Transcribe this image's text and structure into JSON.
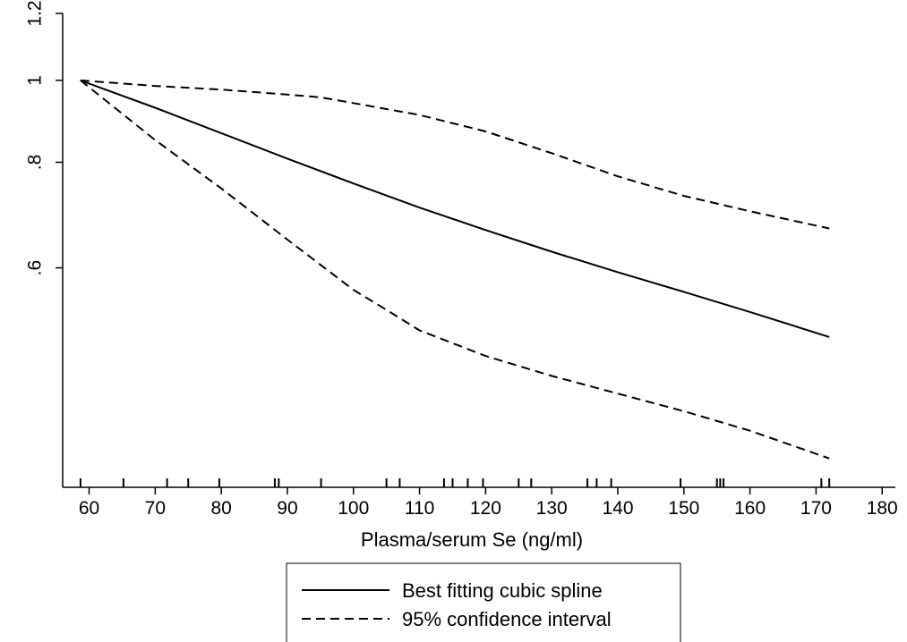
{
  "chart_data": {
    "type": "line",
    "title": "",
    "xlabel": "Plasma/serum Se (ng/ml)",
    "ylabel": "",
    "xlim": [
      56,
      182
    ],
    "ylim": [
      0.33,
      1.2
    ],
    "y_scale": "log",
    "x_ticks": [
      60,
      70,
      80,
      90,
      100,
      110,
      120,
      130,
      140,
      150,
      160,
      170,
      180
    ],
    "x_tick_labels": [
      "60",
      "70",
      "80",
      "90",
      "100",
      "110",
      "120",
      "130",
      "140",
      "150",
      "160",
      "170",
      "180"
    ],
    "y_ticks": [
      0.6,
      0.8,
      1,
      1.2
    ],
    "y_tick_labels": [
      ".6",
      ".8",
      "1",
      "1.2"
    ],
    "grid": false,
    "legend_position": "bottom-center",
    "series": [
      {
        "name": "Best fitting cubic spline",
        "style": "solid",
        "x": [
          58.7,
          70,
          80,
          90,
          100,
          110,
          120,
          130,
          140,
          150,
          160,
          172
        ],
        "y": [
          1.0,
          0.928,
          0.866,
          0.808,
          0.755,
          0.707,
          0.665,
          0.627,
          0.593,
          0.562,
          0.532,
          0.497
        ]
      },
      {
        "name": "95% confidence interval",
        "style": "dashed",
        "x": [
          58.7,
          70,
          80,
          90,
          95,
          100,
          110,
          120,
          130,
          140,
          150,
          160,
          172
        ],
        "y": [
          1.0,
          0.985,
          0.975,
          0.962,
          0.955,
          0.94,
          0.91,
          0.87,
          0.82,
          0.77,
          0.73,
          0.7,
          0.668
        ]
      },
      {
        "name": "",
        "style": "dashed",
        "x": [
          58.7,
          70,
          80,
          90,
          100,
          105,
          110,
          120,
          130,
          140,
          150,
          160,
          172
        ],
        "y": [
          1.0,
          0.85,
          0.745,
          0.648,
          0.565,
          0.535,
          0.506,
          0.472,
          0.447,
          0.426,
          0.406,
          0.385,
          0.357
        ]
      }
    ],
    "rug": [
      58.7,
      65.2,
      71.8,
      75,
      79.7,
      88.1,
      88.7,
      95.1,
      105,
      107,
      113.7,
      115,
      117.3,
      119.6,
      125,
      126.9,
      135.4,
      136.8,
      139,
      149.5,
      155,
      155.5,
      156,
      170.8,
      172
    ]
  }
}
